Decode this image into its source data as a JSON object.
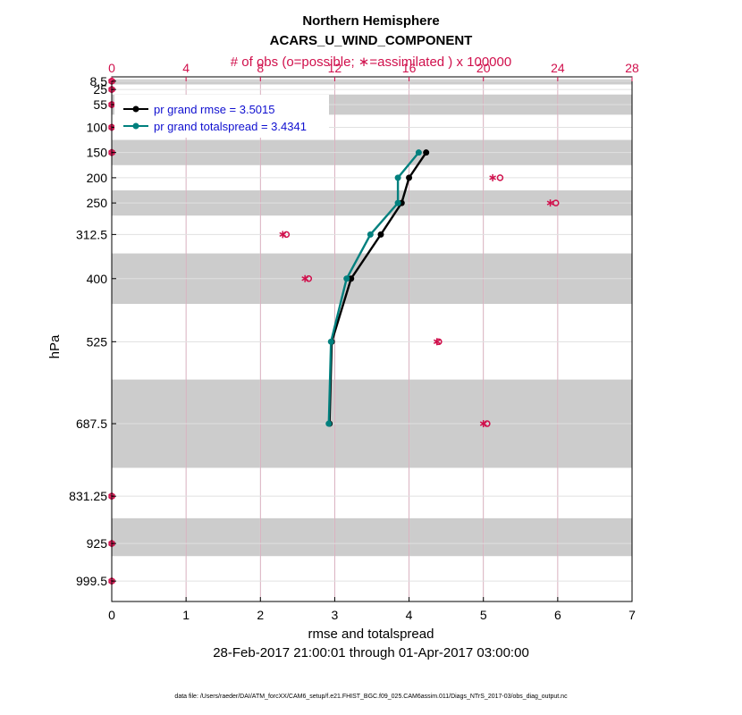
{
  "chart_data": {
    "type": "line",
    "title": "Northern Hemisphere",
    "subtitle": "ACARS_U_WIND_COMPONENT",
    "top_axis_label": "# of obs (o=possible; ∗=assimilated ) x 100000",
    "xlabel": "rmse and totalspread",
    "ylabel": "hPa",
    "date_range": "28-Feb-2017 21:00:01 through 01-Apr-2017 03:00:00",
    "footer": "data file: /Users/raeder/DAI/ATM_forcXX/CAM6_setup/f.e21.FHIST_BGC.f09_025.CAM6assim.011/Diags_NTrS_2017-03/obs_diag_output.nc",
    "xlim": [
      0,
      7
    ],
    "x_ticks": [
      "0",
      "1",
      "2",
      "3",
      "4",
      "5",
      "6",
      "7"
    ],
    "top_xlim": [
      0,
      28
    ],
    "top_ticks": [
      "0",
      "4",
      "8",
      "12",
      "16",
      "20",
      "24",
      "28"
    ],
    "ylim": [
      0,
      1040
    ],
    "levels": [
      8.5,
      25,
      55,
      100,
      150,
      200,
      250,
      312.5,
      400,
      525,
      687.5,
      831.25,
      925,
      999.5
    ],
    "level_labels": [
      "8.5",
      "25",
      "55",
      "100",
      "150",
      "200",
      "250",
      "312.5",
      "400",
      "525",
      "687.5",
      "831.25",
      "925",
      "999.5"
    ],
    "shaded_bands": [
      [
        5,
        15
      ],
      [
        35,
        75
      ],
      [
        125,
        175
      ],
      [
        225,
        275
      ],
      [
        350,
        450
      ],
      [
        600,
        775
      ],
      [
        875,
        950
      ]
    ],
    "series": [
      {
        "name": "pr grand rmse",
        "legend": "pr grand rmse = 3.5015",
        "color": "#000000",
        "points": [
          [
            4.23,
            150
          ],
          [
            4.0,
            200
          ],
          [
            3.9,
            250
          ],
          [
            3.62,
            312.5
          ],
          [
            3.22,
            400
          ],
          [
            2.96,
            525
          ],
          [
            2.93,
            687.5
          ]
        ]
      },
      {
        "name": "pr grand totalspread",
        "legend": "pr grand totalspread = 3.4341",
        "color": "#00807e",
        "points": [
          [
            4.13,
            150
          ],
          [
            3.85,
            200
          ],
          [
            3.85,
            250
          ],
          [
            3.48,
            312.5
          ],
          [
            3.16,
            400
          ],
          [
            2.95,
            525
          ],
          [
            2.92,
            687.5
          ]
        ]
      }
    ],
    "obs_possible": [
      [
        0,
        8.5
      ],
      [
        0,
        25
      ],
      [
        0,
        55
      ],
      [
        0,
        100
      ],
      [
        0,
        150
      ],
      [
        20.9,
        200
      ],
      [
        23.9,
        250
      ],
      [
        9.4,
        312.5
      ],
      [
        10.6,
        400
      ],
      [
        17.6,
        525
      ],
      [
        20.2,
        687.5
      ],
      [
        0,
        831.25
      ],
      [
        0,
        925
      ],
      [
        0,
        999.5
      ]
    ],
    "obs_assimilated": [
      [
        0,
        8.5
      ],
      [
        0,
        25
      ],
      [
        0,
        55
      ],
      [
        0,
        100
      ],
      [
        0,
        150
      ],
      [
        20.5,
        200
      ],
      [
        23.6,
        250
      ],
      [
        9.2,
        312.5
      ],
      [
        10.4,
        400
      ],
      [
        17.5,
        525
      ],
      [
        20.0,
        687.5
      ],
      [
        0,
        831.25
      ],
      [
        0,
        925
      ],
      [
        0,
        999.5
      ]
    ],
    "colors": {
      "obs": "#d0104c",
      "band": "#cccccc",
      "grid": "#e0e0e0",
      "top_grid": "#d8a0b4"
    }
  }
}
